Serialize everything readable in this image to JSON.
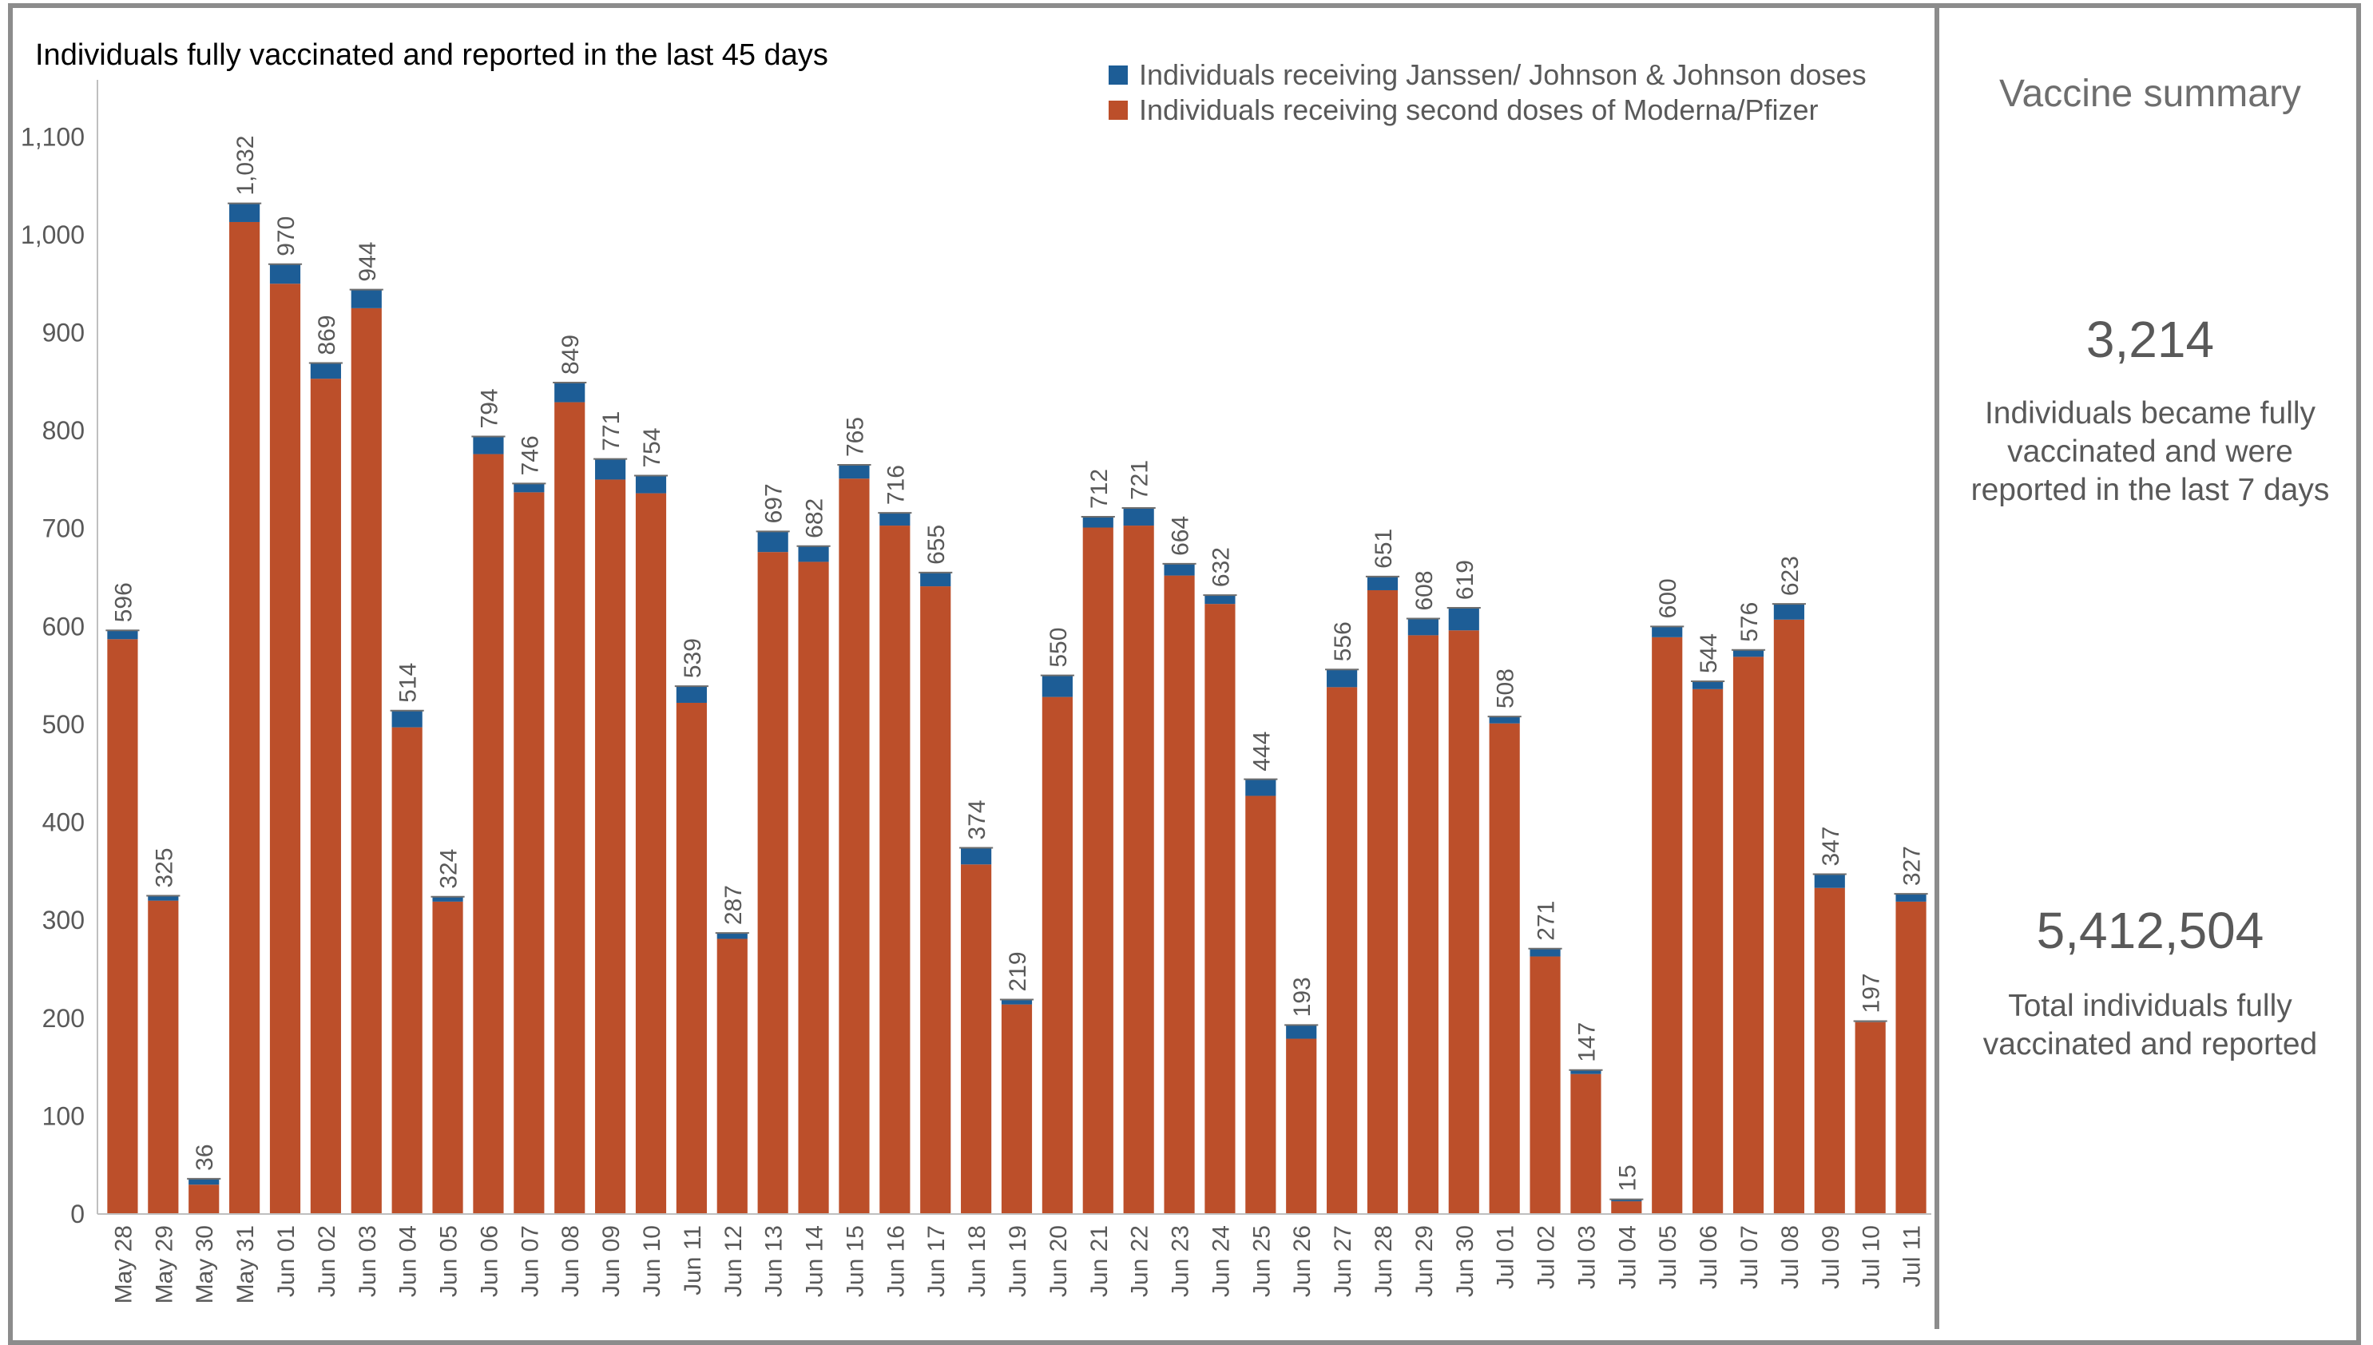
{
  "chart_data": {
    "type": "bar",
    "stacked": true,
    "title": "Individuals fully vaccinated and reported in the last 45 days",
    "xlabel": "",
    "ylabel": "",
    "ylim": [
      0,
      1150
    ],
    "yticks": [
      0,
      100,
      200,
      300,
      400,
      500,
      600,
      700,
      800,
      900,
      1000,
      1100
    ],
    "ytick_labels": [
      "0",
      "100",
      "200",
      "300",
      "400",
      "500",
      "600",
      "700",
      "800",
      "900",
      "1,000",
      "1,100"
    ],
    "legend_position": "top-right",
    "grid": false,
    "categories": [
      "May 28",
      "May 29",
      "May 30",
      "May 31",
      "Jun 01",
      "Jun 02",
      "Jun 03",
      "Jun 04",
      "Jun 05",
      "Jun 06",
      "Jun 07",
      "Jun 08",
      "Jun 09",
      "Jun 10",
      "Jun 11",
      "Jun 12",
      "Jun 13",
      "Jun 14",
      "Jun 15",
      "Jun 16",
      "Jun 17",
      "Jun 18",
      "Jun 19",
      "Jun 20",
      "Jun 21",
      "Jun 22",
      "Jun 23",
      "Jun 24",
      "Jun 25",
      "Jun 26",
      "Jun 27",
      "Jun 28",
      "Jun 29",
      "Jun 30",
      "Jul 01",
      "Jul 02",
      "Jul 03",
      "Jul 04",
      "Jul 05",
      "Jul 06",
      "Jul 07",
      "Jul 08",
      "Jul 09",
      "Jul 10",
      "Jul 11"
    ],
    "series": [
      {
        "name": "Individuals receiving second doses of Moderna/Pfizer",
        "color": "#bc4f2a",
        "values": [
          587,
          320,
          30,
          1013,
          950,
          853,
          925,
          497,
          319,
          776,
          737,
          829,
          750,
          736,
          522,
          281,
          676,
          666,
          751,
          703,
          641,
          357,
          214,
          528,
          701,
          703,
          652,
          623,
          427,
          179,
          538,
          637,
          591,
          596,
          501,
          263,
          143,
          13,
          589,
          536,
          569,
          607,
          333,
          196,
          319
        ]
      },
      {
        "name": "Individuals receiving Janssen/ Johnson & Johnson doses",
        "color": "#1d5d96",
        "values": [
          9,
          5,
          6,
          19,
          20,
          16,
          19,
          17,
          5,
          18,
          9,
          20,
          21,
          18,
          17,
          6,
          21,
          16,
          14,
          13,
          14,
          17,
          5,
          22,
          11,
          18,
          12,
          9,
          17,
          14,
          18,
          14,
          17,
          23,
          7,
          8,
          4,
          2,
          11,
          8,
          7,
          16,
          14,
          1,
          8
        ]
      }
    ],
    "totals": [
      596,
      325,
      36,
      1032,
      970,
      869,
      944,
      514,
      324,
      794,
      746,
      849,
      771,
      754,
      539,
      287,
      697,
      682,
      765,
      716,
      655,
      374,
      219,
      550,
      712,
      721,
      664,
      632,
      444,
      193,
      556,
      651,
      608,
      619,
      508,
      271,
      147,
      15,
      600,
      544,
      576,
      623,
      347,
      197,
      327
    ],
    "total_labels": [
      "596",
      "325",
      "36",
      "1,032",
      "970",
      "869",
      "944",
      "514",
      "324",
      "794",
      "746",
      "849",
      "771",
      "754",
      "539",
      "287",
      "697",
      "682",
      "765",
      "716",
      "655",
      "374",
      "219",
      "550",
      "712",
      "721",
      "664",
      "632",
      "444",
      "193",
      "556",
      "651",
      "608",
      "619",
      "508",
      "271",
      "147",
      "15",
      "600",
      "544",
      "576",
      "623",
      "347",
      "197",
      "327"
    ]
  },
  "legend": [
    {
      "label": "Individuals receiving Janssen/ Johnson & Johnson doses",
      "color": "#1d5d96"
    },
    {
      "label": "Individuals receiving second doses of Moderna/Pfizer",
      "color": "#bc4f2a"
    }
  ],
  "summary": {
    "title": "Vaccine summary",
    "metric1_value": "3,214",
    "metric1_desc": "Individuals became fully vaccinated and were reported in the last 7 days",
    "metric2_value": "5,412,504",
    "metric2_desc": "Total individuals fully vaccinated and reported"
  }
}
